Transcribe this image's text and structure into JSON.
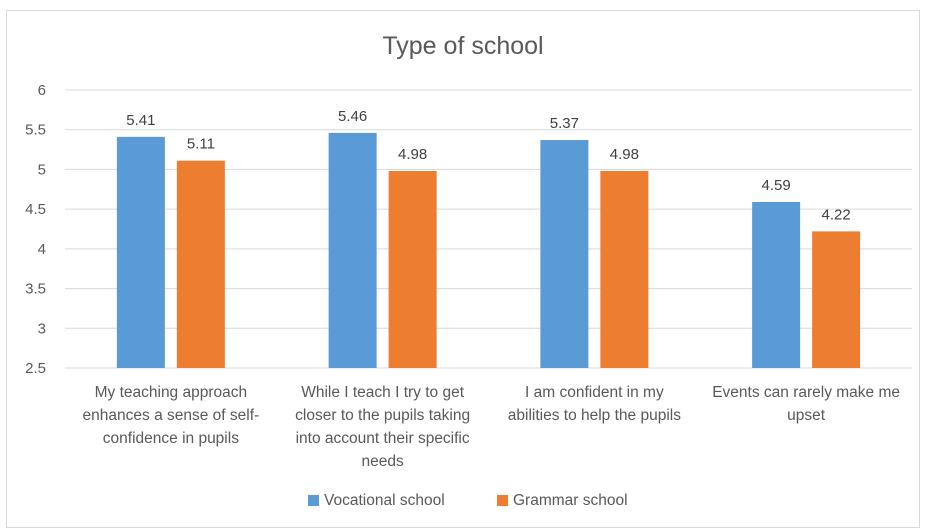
{
  "chart_data": {
    "type": "bar",
    "title": "Type of school",
    "categories": [
      [
        "My teaching approach",
        "enhances a sense of self-",
        "confidence in pupils"
      ],
      [
        "While I teach I try to get",
        "closer to the pupils taking",
        "into account their specific",
        "needs"
      ],
      [
        "I am confident in my",
        "abilities to help the pupils"
      ],
      [
        "Events can rarely make me",
        "upset"
      ]
    ],
    "series": [
      {
        "name": "Vocational school",
        "color": "#5b9bd5",
        "values": [
          5.41,
          5.46,
          5.37,
          4.59
        ]
      },
      {
        "name": "Grammar school",
        "color": "#ed7d31",
        "values": [
          5.11,
          4.98,
          4.98,
          4.22
        ]
      }
    ],
    "ylim": [
      2.5,
      6
    ],
    "yticks": [
      "2.5",
      "3",
      "3.5",
      "4",
      "4.5",
      "5",
      "5.5",
      "6"
    ],
    "grid": true,
    "legend": "bottom"
  }
}
